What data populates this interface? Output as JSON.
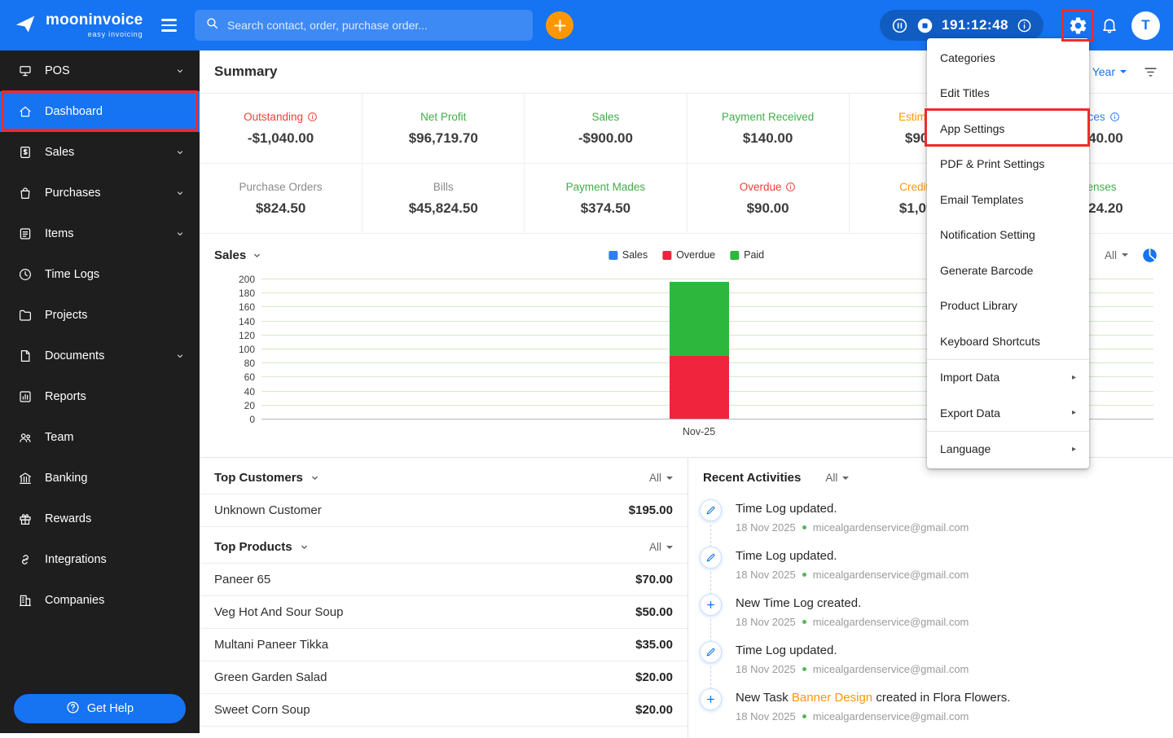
{
  "topbar": {
    "logo_title": "mooninvoice",
    "logo_subtitle": "easy invoicing",
    "search_placeholder": "Search contact, order, purchase order...",
    "timer": "191:12:48",
    "avatar_letter": "T"
  },
  "sidebar": {
    "items": [
      {
        "label": "POS",
        "icon": "pos-icon",
        "chevron": true
      },
      {
        "label": "Dashboard",
        "icon": "home-icon",
        "active": true
      },
      {
        "label": "Sales",
        "icon": "sales-icon",
        "chevron": true
      },
      {
        "label": "Purchases",
        "icon": "purchases-icon",
        "chevron": true
      },
      {
        "label": "Items",
        "icon": "items-icon",
        "chevron": true
      },
      {
        "label": "Time Logs",
        "icon": "clock-icon"
      },
      {
        "label": "Projects",
        "icon": "folder-icon"
      },
      {
        "label": "Documents",
        "icon": "document-icon",
        "chevron": true
      },
      {
        "label": "Reports",
        "icon": "report-icon"
      },
      {
        "label": "Team",
        "icon": "team-icon"
      },
      {
        "label": "Banking",
        "icon": "bank-icon"
      },
      {
        "label": "Rewards",
        "icon": "gift-icon"
      },
      {
        "label": "Integrations",
        "icon": "link-icon"
      },
      {
        "label": "Companies",
        "icon": "building-icon"
      }
    ],
    "get_help_label": "Get Help"
  },
  "summary": {
    "title": "Summary",
    "period_filter": "This Year",
    "rows": [
      [
        {
          "label": "Outstanding",
          "info": true,
          "label_color": "#f23e36",
          "value": "-$1,040.00"
        },
        {
          "label": "Net Profit",
          "label_color": "#3fae49",
          "value": "$96,719.70"
        },
        {
          "label": "Sales",
          "label_color": "#3fae49",
          "value": "-$900.00"
        },
        {
          "label": "Payment Received",
          "label_color": "#3fae49",
          "value": "$140.00"
        },
        {
          "label": "Estimates",
          "info": true,
          "label_color": "#ff9800",
          "value": "$900.00"
        },
        {
          "label": "Invoices",
          "info": true,
          "label_color": "#2f7df6",
          "value": "$1,140.00"
        }
      ],
      [
        {
          "label": "Purchase Orders",
          "label_color": "#8a8a8a",
          "value": "$824.50"
        },
        {
          "label": "Bills",
          "label_color": "#8a8a8a",
          "value": "$45,824.50"
        },
        {
          "label": "Payment Mades",
          "label_color": "#3fae49",
          "value": "$374.50"
        },
        {
          "label": "Overdue",
          "info": true,
          "label_color": "#f23e36",
          "value": "$90.00"
        },
        {
          "label": "Credit Notes",
          "label_color": "#ff9800",
          "value": "$1,095.00"
        },
        {
          "label": "Expenses",
          "label_color": "#3fae49",
          "value": "$5,824.20"
        }
      ]
    ]
  },
  "chart_data": {
    "type": "bar",
    "stacked": true,
    "title": "Sales",
    "categories": [
      "Nov-25"
    ],
    "series": [
      {
        "name": "Sales",
        "color": "#2f7df6",
        "values": [
          0
        ]
      },
      {
        "name": "Overdue",
        "color": "#f0243c",
        "values": [
          90
        ]
      },
      {
        "name": "Paid",
        "color": "#2db83d",
        "values": [
          105
        ]
      }
    ],
    "ylim": [
      0,
      200
    ],
    "ytick_step": 20,
    "grid": "horizontal",
    "legend_position": "top",
    "filter_label": "All"
  },
  "top_customers": {
    "title": "Top Customers",
    "filter_label": "All",
    "rows": [
      {
        "name": "Unknown Customer",
        "amount": "$195.00"
      }
    ]
  },
  "top_products": {
    "title": "Top Products",
    "filter_label": "All",
    "rows": [
      {
        "name": "Paneer 65",
        "amount": "$70.00"
      },
      {
        "name": "Veg Hot And Sour Soup",
        "amount": "$50.00"
      },
      {
        "name": "Multani Paneer Tikka",
        "amount": "$35.00"
      },
      {
        "name": "Green Garden Salad",
        "amount": "$20.00"
      },
      {
        "name": "Sweet Corn Soup",
        "amount": "$20.00"
      }
    ]
  },
  "recent_activities": {
    "title": "Recent Activities",
    "filter_label": "All",
    "items": [
      {
        "icon": "edit",
        "title_parts": [
          {
            "text": "Time Log updated."
          }
        ],
        "date": "18 Nov 2025",
        "email": "micealgardenservice@gmail.com"
      },
      {
        "icon": "edit",
        "title_parts": [
          {
            "text": "Time Log updated."
          }
        ],
        "date": "18 Nov 2025",
        "email": "micealgardenservice@gmail.com"
      },
      {
        "icon": "add",
        "title_parts": [
          {
            "text": "New Time Log created."
          }
        ],
        "date": "18 Nov 2025",
        "email": "micealgardenservice@gmail.com"
      },
      {
        "icon": "edit",
        "title_parts": [
          {
            "text": "Time Log updated."
          }
        ],
        "date": "18 Nov 2025",
        "email": "micealgardenservice@gmail.com"
      },
      {
        "icon": "add",
        "title_parts": [
          {
            "text": "New Task "
          },
          {
            "text": "Banner Design",
            "link": true
          },
          {
            "text": " created in Flora Flowers."
          }
        ],
        "date": "18 Nov 2025",
        "email": "micealgardenservice@gmail.com"
      }
    ]
  },
  "settings_menu": {
    "items": [
      {
        "label": "Categories"
      },
      {
        "label": "Edit Titles"
      },
      {
        "label": "App Settings",
        "highlighted": true
      },
      {
        "label": "PDF & Print Settings"
      },
      {
        "label": "Email Templates"
      },
      {
        "label": "Notification Setting"
      },
      {
        "label": "Generate Barcode"
      },
      {
        "label": "Product Library"
      },
      {
        "label": "Keyboard Shortcuts"
      },
      {
        "label": "Import Data",
        "submenu": true,
        "divider_before": true
      },
      {
        "label": "Export Data",
        "submenu": true
      },
      {
        "label": "Language",
        "submenu": true,
        "divider_before": true
      }
    ]
  },
  "colors": {
    "accent_blue": "#1673f2",
    "highlight_red": "#ee2b2b",
    "orange": "#ff9800",
    "green": "#3fae49",
    "chart_red": "#f0243c",
    "chart_green": "#2db83d"
  }
}
